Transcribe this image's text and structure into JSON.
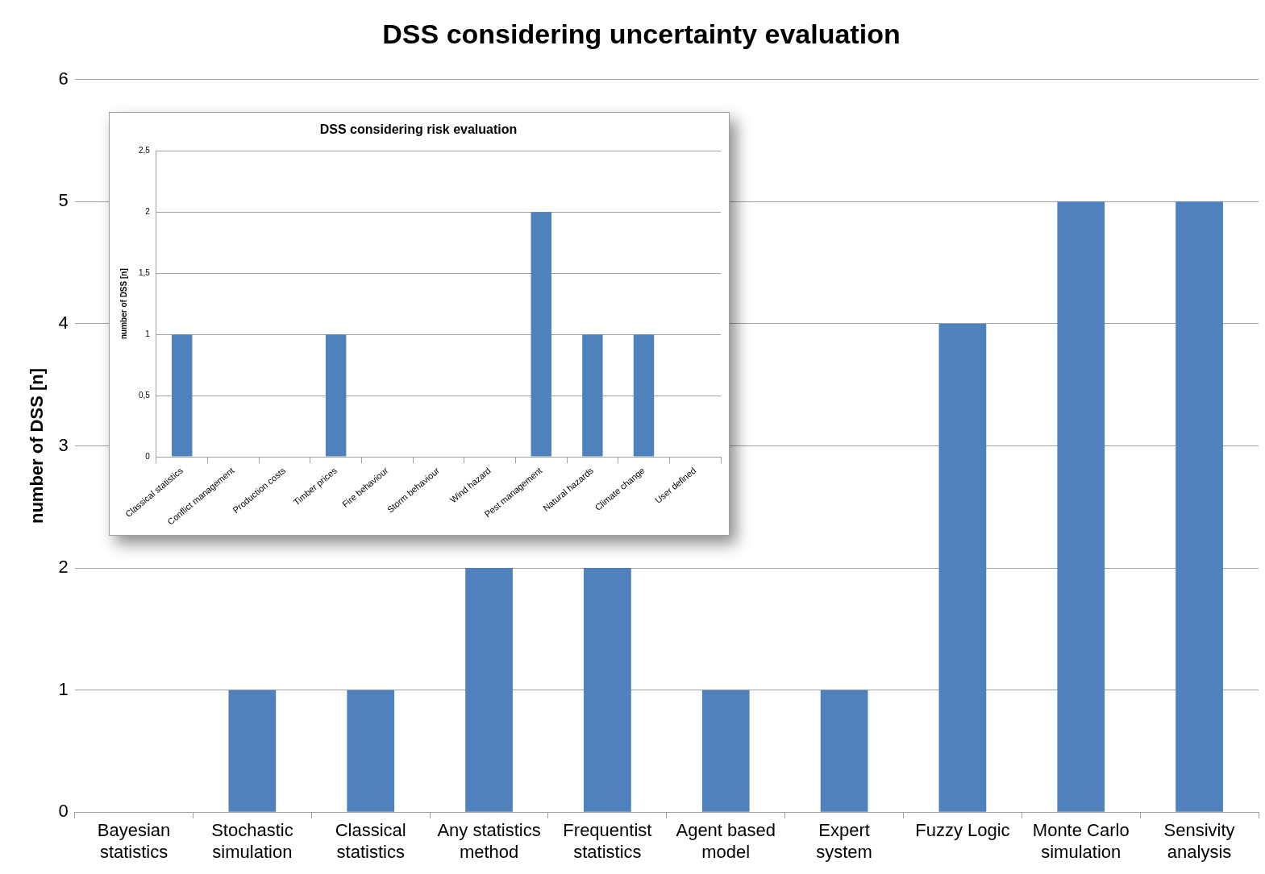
{
  "chart_data": [
    {
      "type": "bar",
      "title": "DSS considering uncertainty evaluation",
      "ylabel": "number of DSS [n]",
      "categories": [
        "Bayesian statistics",
        "Stochastic simulation",
        "Classical statistics",
        "Any statistics method",
        "Frequentist statistics",
        "Agent based model",
        "Expert system",
        "Fuzzy Logic",
        "Monte Carlo simulation",
        "Sensivity analysis"
      ],
      "values": [
        0,
        1,
        1,
        2,
        2,
        1,
        1,
        4,
        5,
        5
      ],
      "color": "#4f81bd",
      "ylim": [
        0,
        6
      ],
      "yticks": [
        0,
        1,
        2,
        3,
        4,
        5,
        6
      ],
      "grid": "y",
      "legend": false
    },
    {
      "type": "bar",
      "title": "DSS considering risk evaluation",
      "ylabel": "number of DSS [n]",
      "categories": [
        "Classical statistics",
        "Conflict management",
        "Production costs",
        "Timber prices",
        "Fire behaviour",
        "Storm behaviour",
        "Wind hazard",
        "Pest management",
        "Natural hazards",
        "Climate change",
        "User defined"
      ],
      "values": [
        1,
        0,
        0,
        1,
        0,
        0,
        0,
        2,
        1,
        1,
        0
      ],
      "color": "#4f81bd",
      "ylim": [
        0,
        2.5
      ],
      "yticks": [
        0,
        {
          "value": 0.5,
          "label": "0,5"
        },
        1,
        {
          "value": 1.5,
          "label": "1,5"
        },
        2,
        {
          "value": 2.5,
          "label": "2,5"
        }
      ],
      "grid": "y",
      "legend": false
    }
  ]
}
